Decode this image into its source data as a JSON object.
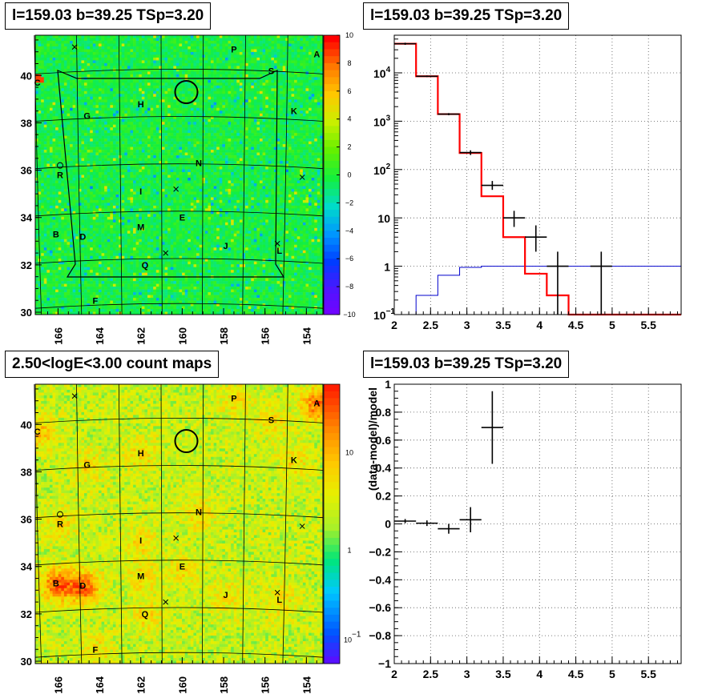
{
  "titles": {
    "top_left": "l=159.03 b=39.25 TSp=3.20",
    "top_right": "l=159.03 b=39.25 TSp=3.20",
    "bottom_left": "2.50<logE<3.00 count maps",
    "bottom_right": "l=159.03 b=39.25 TSp=3.20"
  },
  "colors": {
    "model": "#ff0000",
    "background": "#0000cc",
    "data": "#000000"
  },
  "map_labels": [
    {
      "t": "A",
      "l": 153.5,
      "b": 40.9
    },
    {
      "t": "P",
      "l": 157.5,
      "b": 41.1
    },
    {
      "t": "S",
      "l": 155.7,
      "b": 40.2
    },
    {
      "t": "K",
      "l": 154.6,
      "b": 38.5
    },
    {
      "t": "C",
      "l": 167.0,
      "b": 39.7
    },
    {
      "t": "H",
      "l": 162.0,
      "b": 38.8
    },
    {
      "t": "G",
      "l": 164.6,
      "b": 38.3
    },
    {
      "t": "N",
      "l": 159.2,
      "b": 36.3
    },
    {
      "t": "R",
      "l": 165.9,
      "b": 35.8
    },
    {
      "t": "I",
      "l": 162.0,
      "b": 35.1
    },
    {
      "t": "E",
      "l": 160.0,
      "b": 34.0
    },
    {
      "t": "M",
      "l": 162.0,
      "b": 33.6
    },
    {
      "t": "B",
      "l": 166.1,
      "b": 33.3
    },
    {
      "t": "D",
      "l": 164.8,
      "b": 33.2
    },
    {
      "t": "J",
      "l": 157.9,
      "b": 32.8
    },
    {
      "t": "L",
      "l": 155.3,
      "b": 32.6
    },
    {
      "t": "Q",
      "l": 161.8,
      "b": 32.0
    },
    {
      "t": "F",
      "l": 164.2,
      "b": 30.5
    }
  ],
  "map_crosses": [
    {
      "l": 165.2,
      "b": 41.2
    },
    {
      "l": 160.3,
      "b": 35.2
    },
    {
      "l": 160.8,
      "b": 32.5
    },
    {
      "l": 155.4,
      "b": 32.9
    },
    {
      "l": 154.2,
      "b": 35.7
    }
  ],
  "map_circle": {
    "l": 159.8,
    "b": 39.3
  },
  "map_axes": {
    "x_ticks": [
      "166",
      "164",
      "162",
      "160",
      "158",
      "156",
      "154"
    ],
    "y_ticks": [
      "30",
      "32",
      "34",
      "36",
      "38",
      "40"
    ]
  },
  "chart_data": [
    {
      "type": "heatmap",
      "name_hint": "residual map",
      "xlim": [
        167.1,
        153.2
      ],
      "ylim": [
        29.9,
        41.7
      ],
      "colorbar": {
        "min": -10,
        "max": 10,
        "ticks": [
          "10",
          "8",
          "6",
          "4",
          "2",
          "0",
          "−2",
          "−4",
          "−6",
          "−8",
          "−10"
        ]
      }
    },
    {
      "type": "line",
      "x_ticks": [
        "2",
        "2.5",
        "3",
        "3.5",
        "4",
        "4.5",
        "5",
        "5.5"
      ],
      "y_ticks": [
        "10^-1",
        "1",
        "10",
        "10^2",
        "10^3",
        "10^4"
      ],
      "xlim": [
        2.0,
        5.95
      ],
      "ylim": [
        0.1,
        60000
      ],
      "yscale": "log",
      "grid": true,
      "model_steps": {
        "edges": [
          2.0,
          2.3,
          2.6,
          2.9,
          3.2,
          3.5,
          3.8,
          4.1,
          4.4,
          5.95
        ],
        "values": [
          40000,
          8500,
          1400,
          220,
          28,
          4,
          0.7,
          0.25,
          0.1
        ]
      },
      "background_steps": {
        "edges": [
          2.3,
          2.6,
          2.9,
          3.2,
          5.95
        ],
        "values": [
          0.25,
          0.65,
          0.95,
          1.0
        ]
      },
      "data_points": [
        {
          "x": 2.15,
          "xe": 0.15,
          "y": 40000,
          "lo": 38000,
          "hi": 42000
        },
        {
          "x": 2.45,
          "xe": 0.15,
          "y": 8500,
          "lo": 8200,
          "hi": 8800
        },
        {
          "x": 2.75,
          "xe": 0.15,
          "y": 1400,
          "lo": 1330,
          "hi": 1470
        },
        {
          "x": 3.05,
          "xe": 0.15,
          "y": 225,
          "lo": 200,
          "hi": 250
        },
        {
          "x": 3.35,
          "xe": 0.15,
          "y": 47,
          "lo": 38,
          "hi": 58
        },
        {
          "x": 3.65,
          "xe": 0.15,
          "y": 10,
          "lo": 6.5,
          "hi": 14
        },
        {
          "x": 3.95,
          "xe": 0.15,
          "y": 4,
          "lo": 2,
          "hi": 7
        },
        {
          "x": 4.25,
          "xe": 0.15,
          "y": 1,
          "lo": 0.1,
          "hi": 2.0
        },
        {
          "x": 4.85,
          "xe": 0.15,
          "y": 1,
          "lo": 0.1,
          "hi": 2.0
        }
      ]
    },
    {
      "type": "heatmap",
      "name_hint": "count map",
      "xlim": [
        167.1,
        153.2
      ],
      "ylim": [
        29.9,
        41.7
      ],
      "yscale": "log",
      "colorbar": {
        "ticks": [
          "10",
          "1",
          "10^-1"
        ]
      }
    },
    {
      "type": "scatter",
      "ylabel": "(data-model)/model",
      "x_ticks": [
        "2",
        "2.5",
        "3",
        "3.5",
        "4",
        "4.5",
        "5",
        "5.5"
      ],
      "y_ticks": [
        "1",
        "0.8",
        "0.6",
        "0.4",
        "0.2",
        "0",
        "−0.2",
        "−0.4",
        "−0.6",
        "−0.8",
        "−1"
      ],
      "xlim": [
        2.0,
        5.95
      ],
      "ylim": [
        -1,
        1
      ],
      "grid": true,
      "points": [
        {
          "x": 2.15,
          "xe": 0.15,
          "y": 0.02,
          "ye": 0.015
        },
        {
          "x": 2.45,
          "xe": 0.15,
          "y": 0.005,
          "ye": 0.02
        },
        {
          "x": 2.75,
          "xe": 0.15,
          "y": -0.035,
          "ye": 0.035
        },
        {
          "x": 3.05,
          "xe": 0.15,
          "y": 0.03,
          "ye": 0.09
        },
        {
          "x": 3.35,
          "xe": 0.15,
          "y": 0.69,
          "ye": 0.26
        }
      ]
    }
  ]
}
